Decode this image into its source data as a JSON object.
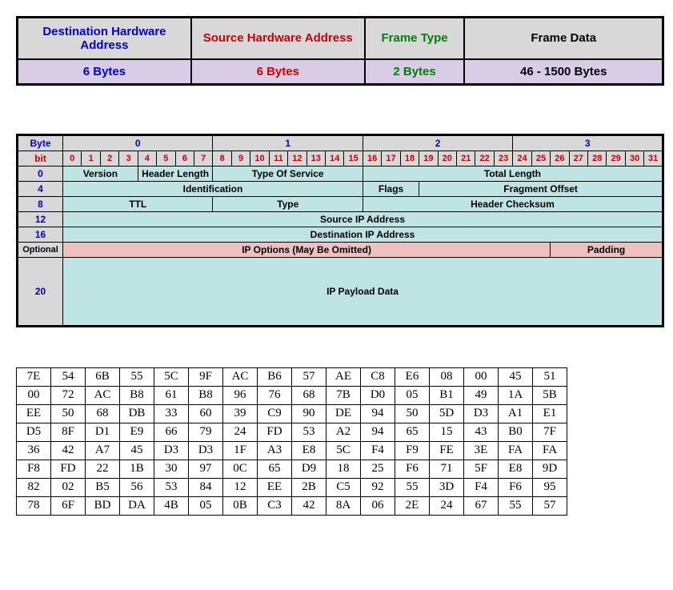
{
  "ethernet": {
    "cols": [
      {
        "label": "Destination Hardware Address",
        "size": "6 Bytes",
        "color": "#0000cc",
        "width": "27%"
      },
      {
        "label": "Source Hardware Address",
        "size": "6 Bytes",
        "color": "#cc0000",
        "width": "27%"
      },
      {
        "label": "Frame Type",
        "size": "2 Bytes",
        "color": "#008000",
        "width": "15%"
      },
      {
        "label": "Frame Data",
        "size": "46 - 1500 Bytes",
        "color": "#000000",
        "width": "31%"
      }
    ]
  },
  "ip": {
    "byte_header_label": "Byte",
    "bit_header_label": "bit",
    "byte_headers": [
      "0",
      "1",
      "2",
      "3"
    ],
    "bits": [
      "0",
      "1",
      "2",
      "3",
      "4",
      "5",
      "6",
      "7",
      "8",
      "9",
      "10",
      "11",
      "12",
      "13",
      "14",
      "15",
      "16",
      "17",
      "18",
      "19",
      "20",
      "21",
      "22",
      "23",
      "24",
      "25",
      "26",
      "27",
      "28",
      "29",
      "30",
      "31"
    ],
    "rows": [
      {
        "label": "0",
        "cells": [
          {
            "span": 4,
            "text": "Version",
            "cls": "field"
          },
          {
            "span": 4,
            "text": "Header Length",
            "cls": "field"
          },
          {
            "span": 8,
            "text": "Type Of Service",
            "cls": "field"
          },
          {
            "span": 16,
            "text": "Total Length",
            "cls": "field"
          }
        ]
      },
      {
        "label": "4",
        "cells": [
          {
            "span": 16,
            "text": "Identification",
            "cls": "field"
          },
          {
            "span": 3,
            "text": "Flags",
            "cls": "field"
          },
          {
            "span": 13,
            "text": "Fragment Offset",
            "cls": "field"
          }
        ]
      },
      {
        "label": "8",
        "cells": [
          {
            "span": 8,
            "text": "TTL",
            "cls": "field"
          },
          {
            "span": 8,
            "text": "Type",
            "cls": "field"
          },
          {
            "span": 16,
            "text": "Header Checksum",
            "cls": "field"
          }
        ]
      },
      {
        "label": "12",
        "cells": [
          {
            "span": 32,
            "text": "Source IP Address",
            "cls": "field"
          }
        ]
      },
      {
        "label": "16",
        "cells": [
          {
            "span": 32,
            "text": "Destination IP Address",
            "cls": "field"
          }
        ]
      },
      {
        "label": "Optional",
        "cells": [
          {
            "span": 26,
            "text": "IP Options (May Be Omitted)",
            "cls": "pink"
          },
          {
            "span": 6,
            "text": "Padding",
            "cls": "pink"
          }
        ]
      },
      {
        "label": "20",
        "cells": [
          {
            "span": 32,
            "text": "IP Payload Data",
            "cls": "field tall"
          }
        ]
      }
    ],
    "label_color": "#0000cc"
  },
  "hex": {
    "rows": [
      [
        "7E",
        "54",
        "6B",
        "55",
        "5C",
        "9F",
        "AC",
        "B6",
        "57",
        "AE",
        "C8",
        "E6",
        "08",
        "00",
        "45",
        "51"
      ],
      [
        "00",
        "72",
        "AC",
        "B8",
        "61",
        "B8",
        "96",
        "76",
        "68",
        "7B",
        "D0",
        "05",
        "B1",
        "49",
        "1A",
        "5B"
      ],
      [
        "EE",
        "50",
        "68",
        "DB",
        "33",
        "60",
        "39",
        "C9",
        "90",
        "DE",
        "94",
        "50",
        "5D",
        "D3",
        "A1",
        "E1"
      ],
      [
        "D5",
        "8F",
        "D1",
        "E9",
        "66",
        "79",
        "24",
        "FD",
        "53",
        "A2",
        "94",
        "65",
        "15",
        "43",
        "B0",
        "7F"
      ],
      [
        "36",
        "42",
        "A7",
        "45",
        "D3",
        "D3",
        "1F",
        "A3",
        "E8",
        "5C",
        "F4",
        "F9",
        "FE",
        "3E",
        "FA",
        "FA"
      ],
      [
        "F8",
        "FD",
        "22",
        "1B",
        "30",
        "97",
        "0C",
        "65",
        "D9",
        "18",
        "25",
        "F6",
        "71",
        "5F",
        "E8",
        "9D"
      ],
      [
        "82",
        "02",
        "B5",
        "56",
        "53",
        "84",
        "12",
        "EE",
        "2B",
        "C5",
        "92",
        "55",
        "3D",
        "F4",
        "F6",
        "95"
      ],
      [
        "78",
        "6F",
        "BD",
        "DA",
        "4B",
        "05",
        "0B",
        "C3",
        "42",
        "8A",
        "06",
        "2E",
        "24",
        "67",
        "55",
        "57"
      ]
    ]
  }
}
